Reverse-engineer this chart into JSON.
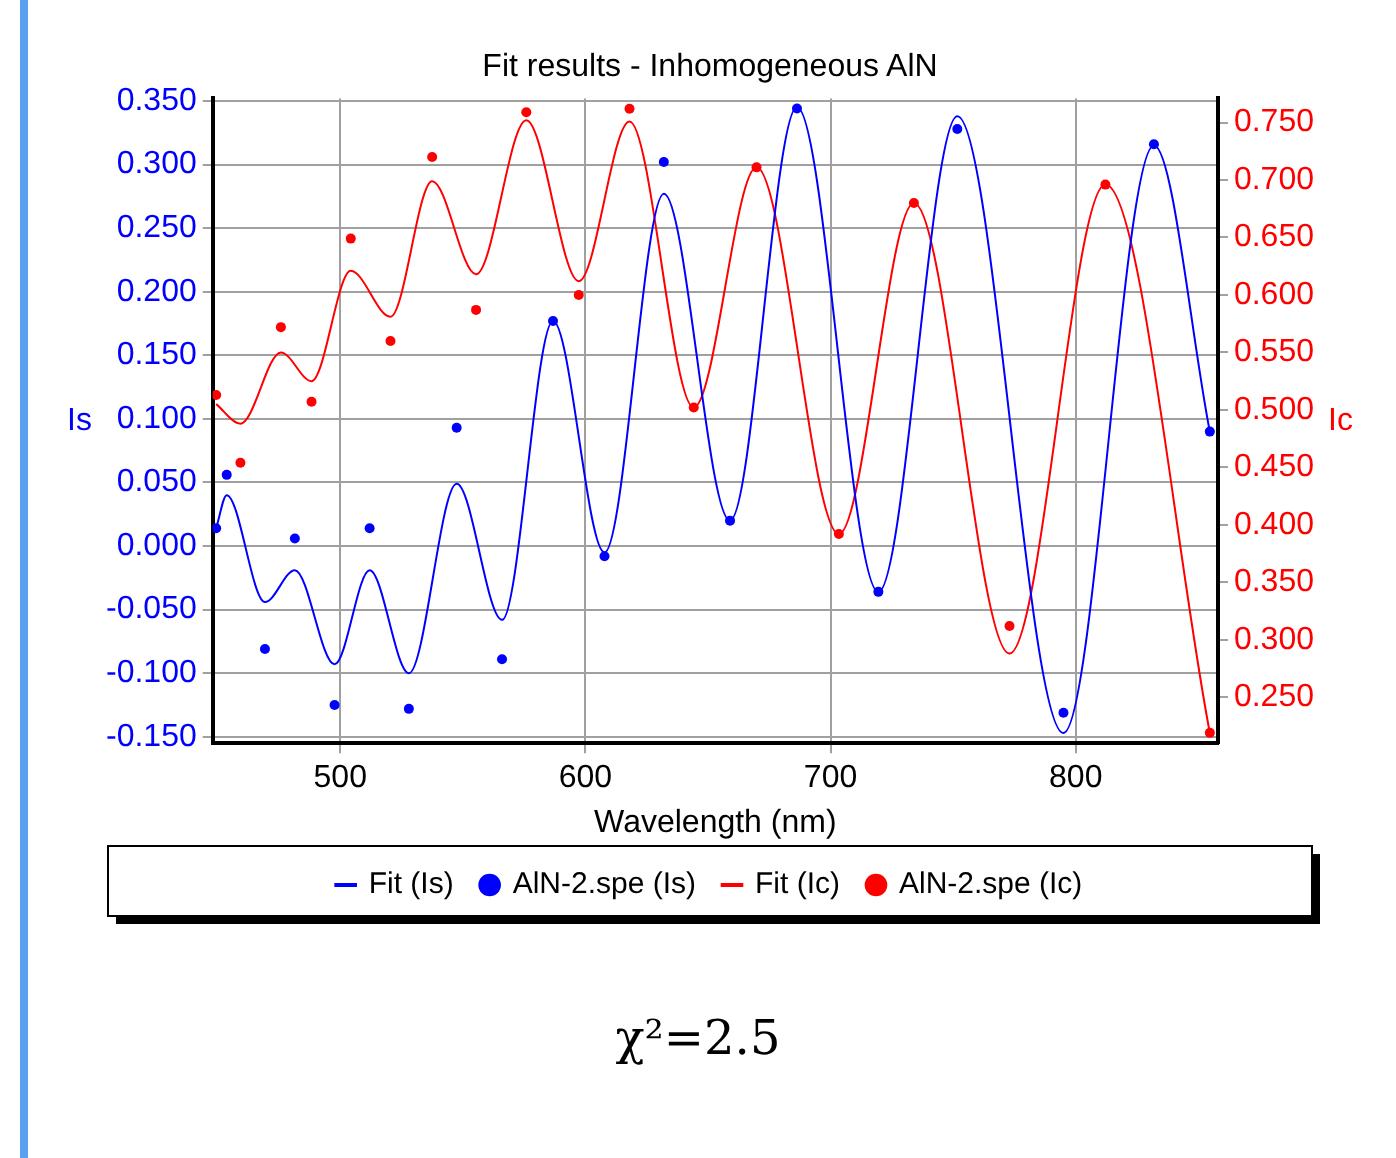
{
  "chart_data": {
    "type": "line",
    "title": "Fit results - Inhomogeneous AlN",
    "xlabel": "Wavelength (nm)",
    "ylabel": "Is",
    "y2label": "Ic",
    "xlim": [
      448,
      858
    ],
    "xticks": [
      500,
      600,
      700,
      800
    ],
    "ylim": [
      -0.155,
      0.352
    ],
    "yticks": [
      {
        "value": -0.15,
        "label": "-0.150"
      },
      {
        "value": -0.1,
        "label": "-0.100"
      },
      {
        "value": -0.05,
        "label": "-0.050"
      },
      {
        "value": 0,
        "label": "0.000"
      },
      {
        "value": 0.05,
        "label": "0.050"
      },
      {
        "value": 0.1,
        "label": "0.100"
      },
      {
        "value": 0.15,
        "label": "0.150"
      },
      {
        "value": 0.2,
        "label": "0.200"
      },
      {
        "value": 0.25,
        "label": "0.250"
      },
      {
        "value": 0.3,
        "label": "0.300"
      },
      {
        "value": 0.35,
        "label": "0.350"
      }
    ],
    "y2lim": [
      0.21,
      0.771
    ],
    "y2ticks": [
      {
        "value": 0.25,
        "label": "0.250"
      },
      {
        "value": 0.3,
        "label": "0.300"
      },
      {
        "value": 0.35,
        "label": "0.350"
      },
      {
        "value": 0.4,
        "label": "0.400"
      },
      {
        "value": 0.45,
        "label": "0.450"
      },
      {
        "value": 0.5,
        "label": "0.500"
      },
      {
        "value": 0.55,
        "label": "0.550"
      },
      {
        "value": 0.6,
        "label": "0.600"
      },
      {
        "value": 0.65,
        "label": "0.650"
      },
      {
        "value": 0.7,
        "label": "0.700"
      },
      {
        "value": 0.75,
        "label": "0.750"
      }
    ],
    "grid": true,
    "legend": "bottom",
    "annotations": [
      "χ²=2.5"
    ],
    "series": [
      {
        "name": "Fit (Is)",
        "marker": "none",
        "color": "#0000ff",
        "x": [
          449.4,
          453.7,
          469.3,
          481.5,
          497.7,
          512,
          528,
          547.5,
          566,
          586.8,
          607.8,
          632,
          659,
          686.3,
          719.5,
          751.7,
          795,
          831.9,
          854.7
        ],
        "values": [
          0.014,
          0.04,
          -0.044,
          -0.019,
          -0.093,
          -0.019,
          -0.1,
          0.049,
          -0.058,
          0.177,
          -0.005,
          0.277,
          0.02,
          0.345,
          -0.036,
          0.338,
          -0.147,
          0.315,
          0.09
        ]
      },
      {
        "name": "AlN-2.spe (Is)",
        "type": "scatter",
        "marker": "circle",
        "color": "#0000ff",
        "x": [
          449.4,
          453.7,
          469.3,
          481.5,
          497.7,
          512,
          528,
          547.5,
          566,
          586.8,
          607.8,
          632,
          659,
          686.3,
          719.5,
          751.7,
          795,
          831.9,
          854.7
        ],
        "values": [
          0.014,
          0.056,
          -0.081,
          0.006,
          -0.125,
          0.014,
          -0.128,
          0.093,
          -0.089,
          0.177,
          -0.008,
          0.302,
          0.02,
          0.344,
          -0.036,
          0.328,
          -0.131,
          0.316,
          0.09
        ]
      },
      {
        "name": "Fit (Ic)",
        "marker": "none",
        "color": "#ff0000",
        "axis": "y2",
        "x": [
          449.4,
          459.3,
          475.8,
          488.3,
          504.3,
          520.5,
          537.5,
          555.4,
          575.9,
          597.3,
          618,
          644.2,
          669.8,
          703.4,
          734,
          773,
          812.1,
          854.7
        ],
        "values": [
          0.505,
          0.488,
          0.55,
          0.525,
          0.621,
          0.581,
          0.699,
          0.618,
          0.752,
          0.612,
          0.751,
          0.502,
          0.711,
          0.392,
          0.68,
          0.288,
          0.696,
          0.219
        ]
      },
      {
        "name": "AlN-2.spe (Ic)",
        "type": "scatter",
        "marker": "circle",
        "color": "#ff0000",
        "axis": "y2",
        "x": [
          449.4,
          459.3,
          475.8,
          488.3,
          504.3,
          520.5,
          537.5,
          555.4,
          575.9,
          597.3,
          618,
          644.2,
          669.8,
          703.4,
          734,
          773,
          812.1,
          854.7
        ],
        "values": [
          0.513,
          0.454,
          0.572,
          0.507,
          0.649,
          0.56,
          0.72,
          0.587,
          0.759,
          0.6,
          0.762,
          0.502,
          0.711,
          0.392,
          0.68,
          0.312,
          0.696,
          0.219
        ]
      }
    ]
  }
}
